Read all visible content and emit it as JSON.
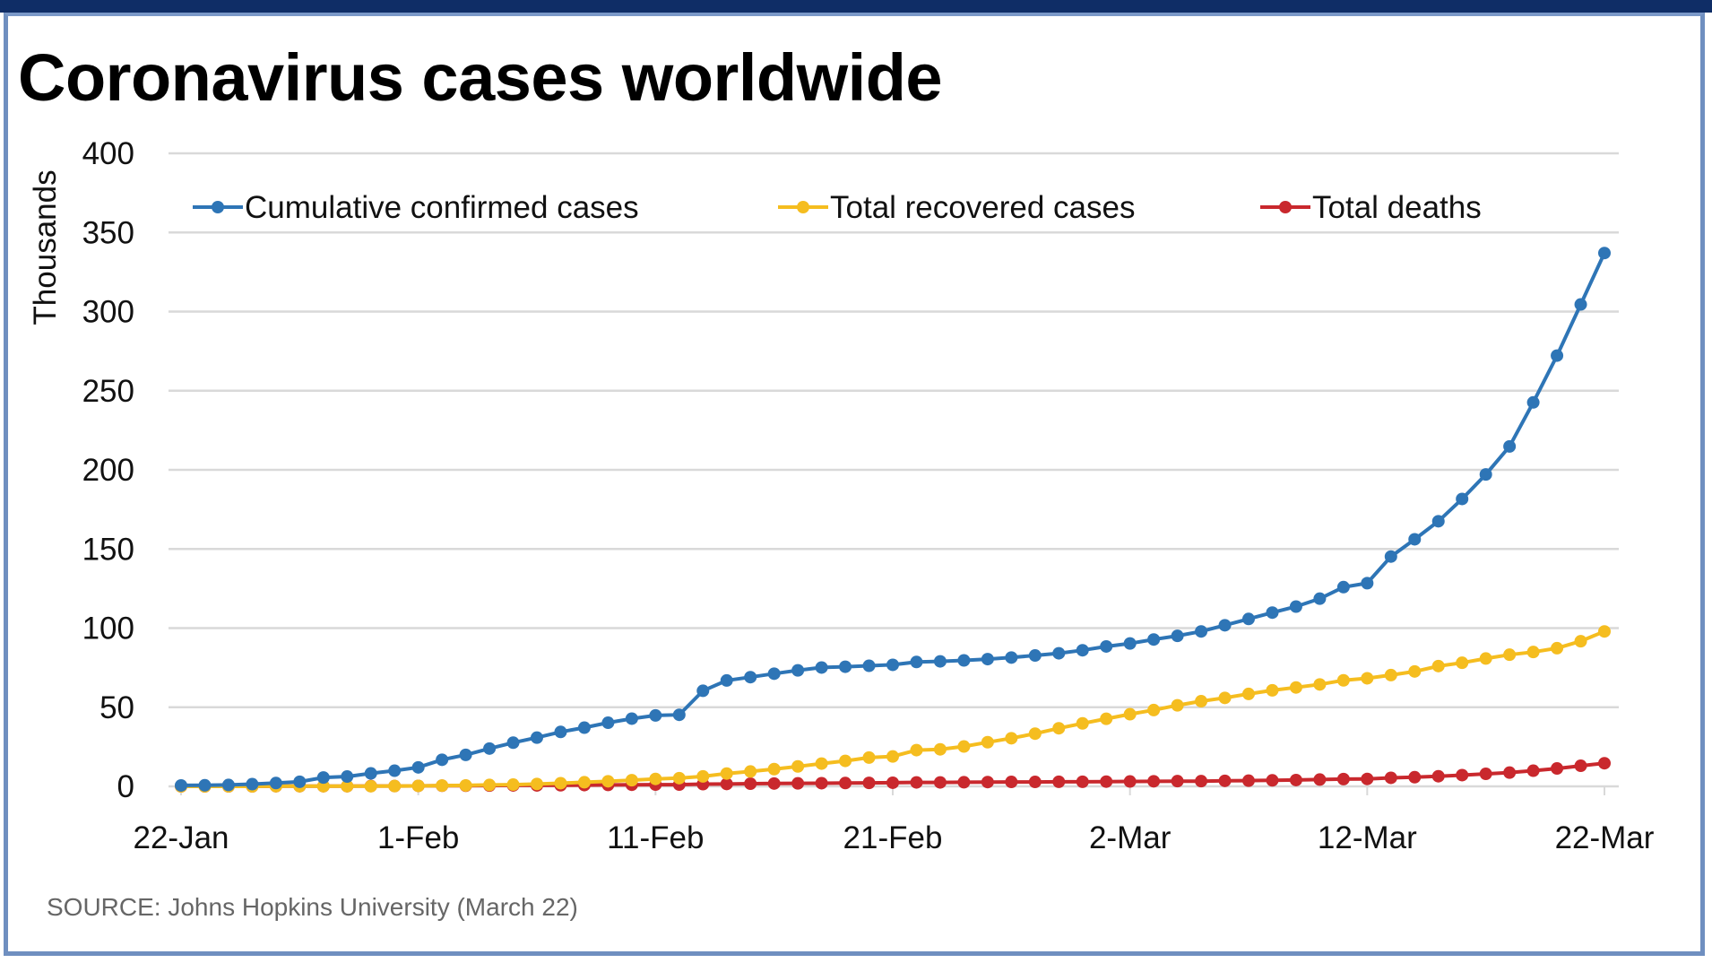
{
  "chart_data": {
    "type": "line",
    "title": "Coronavirus cases worldwide",
    "ylabel": "Thousands",
    "xlabel": "",
    "ylim": [
      0,
      400
    ],
    "yticks": [
      "0",
      "50",
      "100",
      "150",
      "200",
      "250",
      "300",
      "350",
      "400"
    ],
    "ytick_values": [
      0,
      50,
      100,
      150,
      200,
      250,
      300,
      350,
      400
    ],
    "xtick_labels": [
      "22-Jan",
      "1-Feb",
      "11-Feb",
      "21-Feb",
      "2-Mar",
      "12-Mar",
      "22-Mar"
    ],
    "xtick_index": [
      0,
      10,
      20,
      30,
      40,
      50,
      60
    ],
    "x_start": "22-Jan",
    "x_end": "22-Mar",
    "grid": true,
    "legend_position": "top",
    "series": [
      {
        "name": "Cumulative confirmed cases",
        "color": "#2e75b6",
        "values": [
          0.6,
          0.7,
          0.9,
          1.4,
          2.1,
          2.9,
          5.6,
          6.2,
          8.2,
          9.9,
          12.0,
          16.8,
          19.9,
          23.9,
          27.6,
          30.8,
          34.4,
          37.1,
          40.2,
          42.8,
          44.8,
          45.2,
          60.4,
          66.9,
          69.0,
          71.2,
          73.3,
          75.1,
          75.6,
          76.2,
          76.8,
          78.6,
          79.0,
          79.6,
          80.4,
          81.4,
          82.7,
          84.1,
          86.0,
          88.4,
          90.3,
          92.8,
          95.1,
          97.9,
          101.8,
          105.8,
          109.8,
          113.6,
          118.6,
          125.9,
          128.4,
          145.2,
          156.1,
          167.5,
          181.6,
          197.1,
          214.8,
          242.6,
          272.2,
          304.5,
          337.0
        ]
      },
      {
        "name": "Total recovered cases",
        "color": "#f5bd1f",
        "values": [
          0.0,
          0.0,
          0.0,
          0.0,
          0.1,
          0.1,
          0.1,
          0.1,
          0.1,
          0.2,
          0.3,
          0.5,
          0.6,
          0.9,
          1.1,
          1.5,
          2.0,
          2.6,
          3.2,
          3.9,
          4.7,
          5.2,
          6.3,
          8.1,
          9.4,
          10.9,
          12.6,
          14.4,
          16.1,
          18.2,
          18.9,
          22.9,
          23.4,
          25.2,
          27.9,
          30.4,
          33.3,
          36.7,
          39.8,
          42.7,
          45.6,
          48.2,
          51.2,
          53.8,
          55.9,
          58.4,
          60.7,
          62.5,
          64.4,
          67.0,
          68.3,
          70.3,
          72.6,
          76.0,
          78.1,
          80.8,
          83.2,
          84.9,
          87.3,
          91.7,
          97.9
        ]
      },
      {
        "name": "Total deaths",
        "color": "#c9282d",
        "values": [
          0.0,
          0.0,
          0.0,
          0.0,
          0.1,
          0.1,
          0.1,
          0.1,
          0.2,
          0.2,
          0.3,
          0.4,
          0.4,
          0.5,
          0.6,
          0.6,
          0.7,
          0.8,
          0.9,
          1.0,
          1.1,
          1.1,
          1.4,
          1.5,
          1.7,
          1.8,
          1.9,
          2.0,
          2.1,
          2.2,
          2.3,
          2.5,
          2.5,
          2.6,
          2.7,
          2.8,
          2.8,
          2.9,
          2.9,
          3.0,
          3.1,
          3.2,
          3.3,
          3.3,
          3.5,
          3.6,
          3.8,
          4.0,
          4.3,
          4.6,
          4.7,
          5.4,
          5.8,
          6.4,
          7.1,
          7.9,
          8.7,
          9.9,
          11.3,
          13.0,
          14.6
        ]
      }
    ],
    "source": "SOURCE:  Johns Hopkins University (March  22)"
  }
}
